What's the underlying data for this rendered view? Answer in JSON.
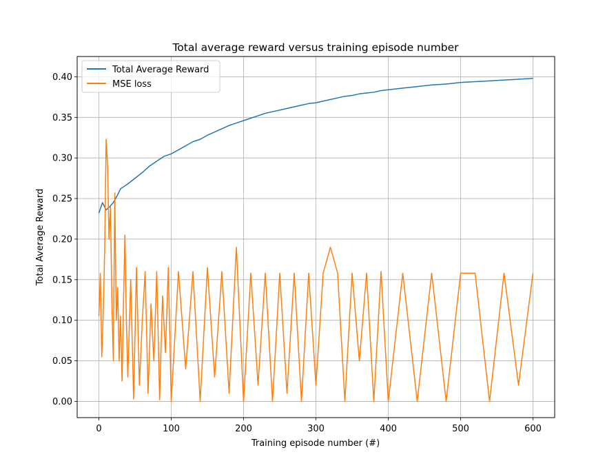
{
  "chart_data": {
    "type": "line",
    "title": "Total average reward versus training episode number",
    "xlabel": "Training episode number (#)",
    "ylabel": "Total Average Reward",
    "xlim": [
      -30,
      630
    ],
    "ylim": [
      -0.02,
      0.425
    ],
    "xticks": [
      0,
      100,
      200,
      300,
      400,
      500,
      600
    ],
    "yticks": [
      0.0,
      0.05,
      0.1,
      0.15,
      0.2,
      0.25,
      0.3,
      0.35,
      0.4
    ],
    "grid": true,
    "legend_position": "upper-left",
    "series": [
      {
        "name": "Total Average Reward",
        "color": "#1f77b4",
        "x": [
          0,
          5,
          10,
          15,
          20,
          25,
          30,
          40,
          50,
          60,
          70,
          80,
          90,
          100,
          110,
          120,
          130,
          140,
          150,
          160,
          170,
          180,
          190,
          200,
          210,
          220,
          230,
          240,
          250,
          260,
          270,
          280,
          290,
          300,
          310,
          320,
          330,
          340,
          350,
          360,
          370,
          380,
          390,
          400,
          420,
          440,
          460,
          480,
          500,
          520,
          540,
          560,
          580,
          600
        ],
        "values": [
          0.232,
          0.245,
          0.236,
          0.24,
          0.245,
          0.253,
          0.262,
          0.268,
          0.275,
          0.282,
          0.29,
          0.296,
          0.302,
          0.305,
          0.31,
          0.315,
          0.32,
          0.323,
          0.328,
          0.332,
          0.336,
          0.34,
          0.343,
          0.346,
          0.349,
          0.352,
          0.355,
          0.357,
          0.359,
          0.361,
          0.363,
          0.365,
          0.367,
          0.368,
          0.37,
          0.372,
          0.374,
          0.376,
          0.377,
          0.379,
          0.38,
          0.381,
          0.383,
          0.384,
          0.386,
          0.388,
          0.39,
          0.391,
          0.393,
          0.394,
          0.395,
          0.396,
          0.397,
          0.398
        ]
      },
      {
        "name": "MSE loss",
        "color": "#ff7f0e",
        "x": [
          0,
          2,
          4,
          6,
          8,
          10,
          12,
          14,
          16,
          18,
          20,
          22,
          24,
          26,
          28,
          30,
          32,
          34,
          36,
          38,
          40,
          44,
          48,
          52,
          56,
          60,
          64,
          68,
          72,
          76,
          80,
          84,
          88,
          92,
          96,
          100,
          110,
          120,
          130,
          140,
          150,
          160,
          170,
          180,
          190,
          200,
          210,
          220,
          230,
          240,
          250,
          260,
          270,
          280,
          290,
          300,
          310,
          320,
          330,
          340,
          350,
          360,
          370,
          380,
          390,
          400,
          420,
          440,
          460,
          480,
          500,
          520,
          540,
          560,
          580,
          600
        ],
        "values": [
          0.105,
          0.158,
          0.055,
          0.11,
          0.185,
          0.323,
          0.29,
          0.2,
          0.24,
          0.12,
          0.05,
          0.257,
          0.1,
          0.14,
          0.05,
          0.105,
          0.025,
          0.12,
          0.205,
          0.1,
          0.03,
          0.15,
          0.003,
          0.165,
          0.02,
          0.1,
          0.16,
          0.01,
          0.12,
          0.05,
          0.16,
          0.002,
          0.13,
          0.06,
          0.165,
          0.0,
          0.16,
          0.04,
          0.16,
          0.0,
          0.165,
          0.03,
          0.16,
          0.01,
          0.19,
          0.0,
          0.158,
          0.02,
          0.158,
          0.0,
          0.158,
          0.01,
          0.158,
          0.0,
          0.158,
          0.02,
          0.158,
          0.19,
          0.158,
          0.0,
          0.158,
          0.05,
          0.158,
          0.0,
          0.16,
          0.0,
          0.158,
          0.0,
          0.158,
          0.0,
          0.158,
          0.158,
          0.0,
          0.158,
          0.02,
          0.158
        ]
      }
    ]
  }
}
